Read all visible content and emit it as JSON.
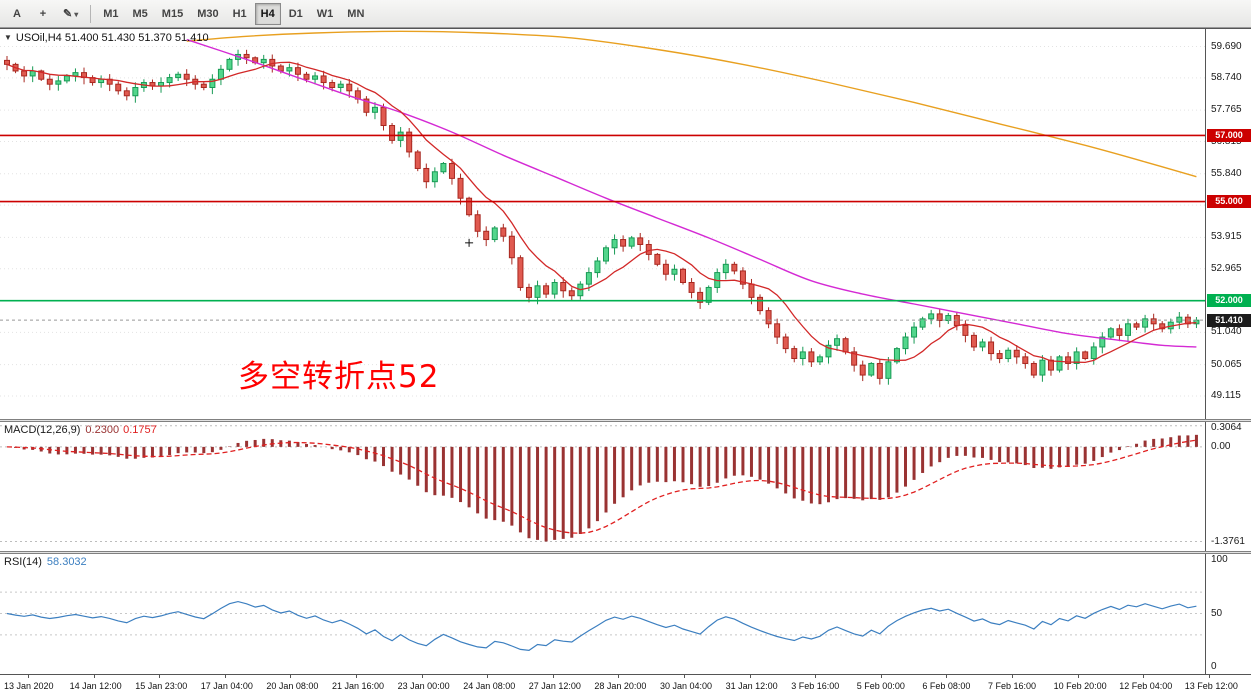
{
  "toolbar": {
    "text_tool_label": "A",
    "crosshair_tool_label": "+",
    "pen_icon": "✎",
    "caret_icon": "▾",
    "timeframes": [
      "M1",
      "M5",
      "M15",
      "M30",
      "H1",
      "H4",
      "D1",
      "W1",
      "MN"
    ],
    "active_timeframe": "H4"
  },
  "chart": {
    "collapse_icon": "▼",
    "symbol_line": "USOil,H4 51.400 51.430 51.370 51.410",
    "annotation": "多空转折点52",
    "annotation_color": "#ff0000",
    "hlines": [
      {
        "price": 57.0,
        "label": "57.000",
        "color": "#cc0000"
      },
      {
        "price": 55.0,
        "label": "55.000",
        "color": "#cc0000"
      },
      {
        "price": 52.0,
        "label": "52.000",
        "color": "#00b050"
      }
    ],
    "current_price": {
      "value": 51.41,
      "label": "51.410",
      "tag_color": "#1c1c1c"
    }
  },
  "macd": {
    "name": "MACD(12,26,9)",
    "value_main": "0.2300",
    "value_signal": "0.1757",
    "scale": [
      "0.3064",
      "0.00",
      "-1.3761"
    ]
  },
  "rsi": {
    "name": "RSI(14)",
    "value": "58.3032",
    "scale": [
      "100",
      "50",
      "0"
    ]
  },
  "chart_data": {
    "type": "candlestick",
    "symbol": "USOil",
    "timeframe": "H4",
    "y_range": [
      48.42,
      60.22
    ],
    "y_ticks": [
      "59.690",
      "58.740",
      "57.765",
      "56.815",
      "55.840",
      "54.890",
      "53.915",
      "52.965",
      "51.990",
      "51.040",
      "50.065",
      "49.115"
    ],
    "x_labels": [
      "13 Jan 2020",
      "14 Jan 12:00",
      "15 Jan 23:00",
      "17 Jan 04:00",
      "20 Jan 08:00",
      "21 Jan 16:00",
      "23 Jan 00:00",
      "24 Jan 08:00",
      "27 Jan 12:00",
      "28 Jan 20:00",
      "30 Jan 04:00",
      "31 Jan 12:00",
      "3 Feb 16:00",
      "5 Feb 00:00",
      "6 Feb 08:00",
      "7 Feb 16:00",
      "10 Feb 20:00",
      "12 Feb 04:00",
      "13 Feb 12:00"
    ],
    "closes": [
      59.15,
      58.95,
      58.8,
      58.95,
      58.7,
      58.55,
      58.65,
      58.8,
      58.9,
      58.75,
      58.6,
      58.7,
      58.55,
      58.35,
      58.2,
      58.45,
      58.6,
      58.5,
      58.6,
      58.75,
      58.85,
      58.7,
      58.55,
      58.45,
      58.7,
      59.0,
      59.3,
      59.45,
      59.35,
      59.2,
      59.3,
      59.1,
      58.95,
      59.05,
      58.85,
      58.7,
      58.8,
      58.6,
      58.45,
      58.55,
      58.35,
      58.1,
      57.7,
      57.85,
      57.3,
      56.85,
      57.1,
      56.5,
      56.0,
      55.6,
      55.9,
      56.15,
      55.7,
      55.1,
      54.6,
      54.1,
      53.85,
      54.2,
      53.95,
      53.3,
      52.4,
      52.1,
      52.45,
      52.2,
      52.55,
      52.3,
      52.15,
      52.5,
      52.85,
      53.2,
      53.6,
      53.85,
      53.65,
      53.9,
      53.7,
      53.4,
      53.1,
      52.8,
      52.95,
      52.55,
      52.25,
      51.95,
      52.4,
      52.85,
      53.1,
      52.9,
      52.5,
      52.1,
      51.7,
      51.3,
      50.9,
      50.55,
      50.25,
      50.45,
      50.15,
      50.3,
      50.65,
      50.85,
      50.45,
      50.05,
      49.75,
      50.1,
      49.65,
      50.15,
      50.55,
      50.9,
      51.2,
      51.45,
      51.6,
      51.4,
      51.55,
      51.25,
      50.95,
      50.6,
      50.75,
      50.4,
      50.25,
      50.5,
      50.3,
      50.1,
      49.75,
      50.2,
      49.9,
      50.3,
      50.1,
      50.45,
      50.25,
      50.6,
      50.9,
      51.15,
      50.95,
      51.3,
      51.2,
      51.45,
      51.3,
      51.15,
      51.35,
      51.5,
      51.3,
      51.41
    ],
    "candle_up": {
      "fill": "#53d68c",
      "stroke": "#189a55"
    },
    "candle_down": {
      "fill": "#e05a50",
      "stroke": "#a82820"
    },
    "ma_fast": {
      "color": "#d22828",
      "period_sma": 8
    },
    "ma_mid_color": "#d42ad4",
    "ma_mid_points": [
      [
        21,
        59.9
      ],
      [
        28,
        59.3
      ],
      [
        34,
        58.75
      ],
      [
        40,
        58.2
      ],
      [
        46,
        57.7
      ],
      [
        52,
        57.1
      ],
      [
        58,
        56.4
      ],
      [
        64,
        55.75
      ],
      [
        70,
        55.1
      ],
      [
        76,
        54.5
      ],
      [
        82,
        53.9
      ],
      [
        88,
        53.25
      ],
      [
        94,
        52.6
      ],
      [
        100,
        52.2
      ],
      [
        106,
        51.9
      ],
      [
        112,
        51.6
      ],
      [
        118,
        51.3
      ],
      [
        124,
        51.0
      ],
      [
        130,
        50.8
      ],
      [
        135,
        50.65
      ],
      [
        139,
        50.6
      ]
    ],
    "ma_slow_color": "#e8a020",
    "ma_slow_points": [
      [
        21,
        59.85
      ],
      [
        28,
        60.0
      ],
      [
        36,
        60.1
      ],
      [
        46,
        60.15
      ],
      [
        56,
        60.1
      ],
      [
        66,
        59.95
      ],
      [
        76,
        59.6
      ],
      [
        86,
        59.15
      ],
      [
        96,
        58.6
      ],
      [
        106,
        58.0
      ],
      [
        116,
        57.35
      ],
      [
        126,
        56.7
      ],
      [
        133,
        56.2
      ],
      [
        139,
        55.75
      ]
    ],
    "macd_params": {
      "fast": 12,
      "slow": 26,
      "signal": 9,
      "min": -1.3761,
      "max": 0.3064,
      "bar_color": "#993333",
      "signal_color": "#e02020"
    },
    "rsi_params": {
      "period": 14,
      "levels": [
        70,
        50,
        30
      ],
      "color": "#3c7fc0"
    },
    "cross_marker": {
      "index": 54,
      "price": 53.75
    }
  }
}
